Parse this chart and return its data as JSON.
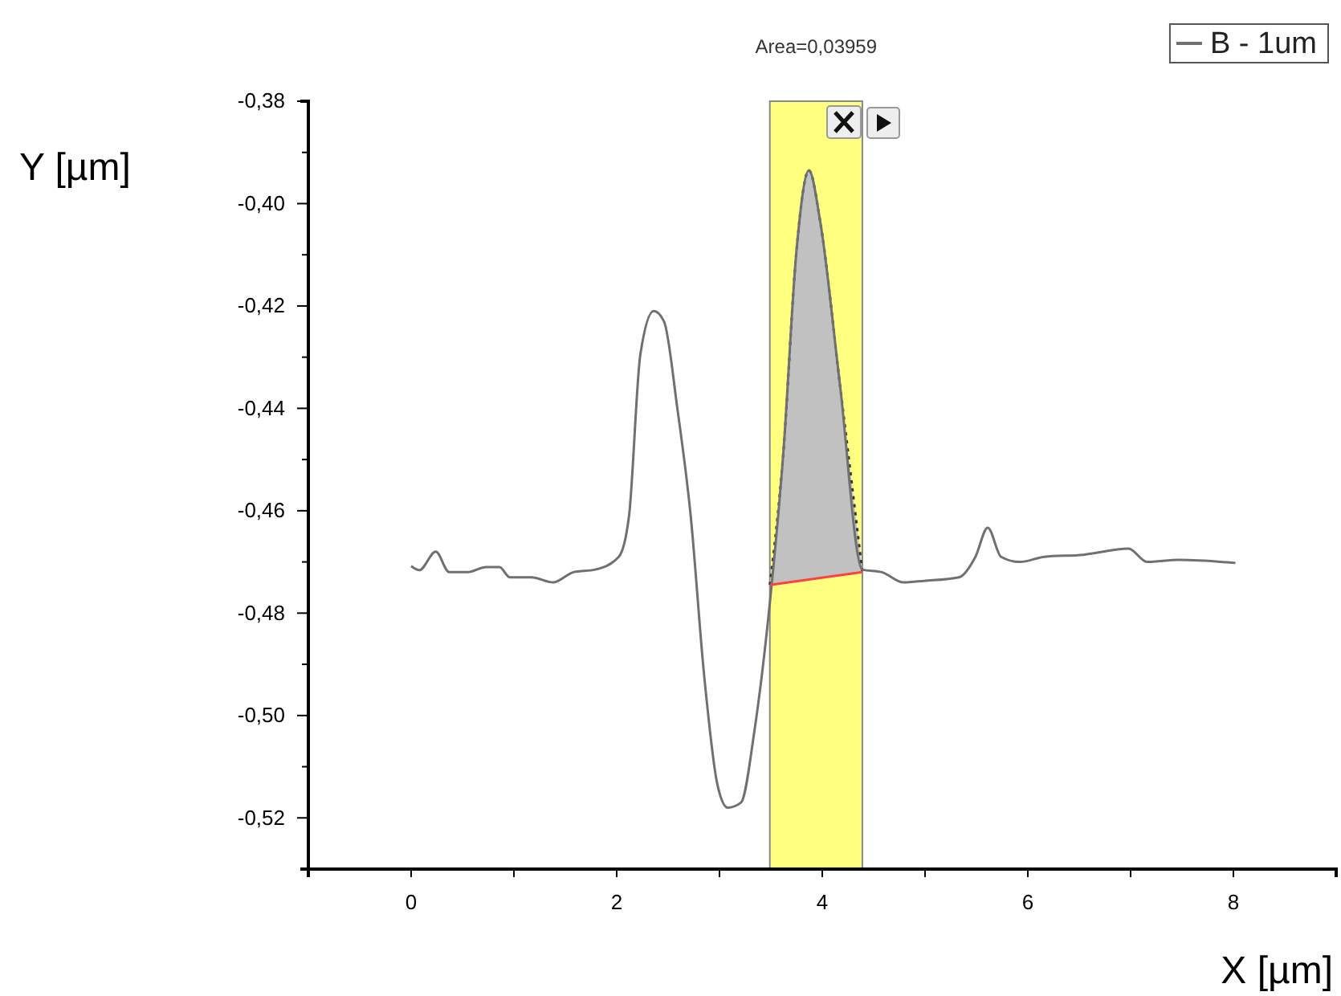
{
  "chart_data": {
    "type": "line",
    "xlabel": "X [µm]",
    "ylabel": "Y [µm]",
    "xlim": [
      -1,
      9
    ],
    "ylim": [
      -0.53,
      -0.38
    ],
    "xticks": [
      {
        "value": -1,
        "label": null
      },
      0,
      {
        "value": 1,
        "label": null
      },
      2,
      {
        "value": 3,
        "label": null
      },
      4,
      {
        "value": 5,
        "label": null
      },
      6,
      {
        "value": 7,
        "label": null
      },
      8
    ],
    "yticks": [
      {
        "value": -0.53,
        "label": null
      },
      {
        "value": -0.52,
        "label": "-0,52"
      },
      {
        "value": -0.51,
        "label": null
      },
      {
        "value": -0.5,
        "label": "-0,50"
      },
      {
        "value": -0.49,
        "label": null
      },
      {
        "value": -0.48,
        "label": "-0,48"
      },
      {
        "value": -0.47,
        "label": null
      },
      {
        "value": -0.46,
        "label": "-0,46"
      },
      {
        "value": -0.45,
        "label": null
      },
      {
        "value": -0.44,
        "label": "-0,44"
      },
      {
        "value": -0.43,
        "label": null
      },
      {
        "value": -0.42,
        "label": "-0,42"
      },
      {
        "value": -0.41,
        "label": null
      },
      {
        "value": -0.4,
        "label": "-0,40"
      },
      {
        "value": -0.39,
        "label": null
      },
      {
        "value": -0.38,
        "label": "-0,38"
      }
    ],
    "grid": false,
    "legend": "top right",
    "marker": "none",
    "bands": [
      {
        "axis": "x",
        "from": 3.49,
        "to": 4.39,
        "color": "#ffff80"
      }
    ],
    "annotations": [
      "Area=0,03959"
    ],
    "series": [
      {
        "name": "B - 1um",
        "color": "#707070",
        "x": [
          0,
          0.08,
          0.24,
          0.37,
          0.55,
          0.73,
          0.86,
          0.96,
          1.17,
          1.38,
          1.58,
          1.79,
          2.02,
          2.12,
          2.23,
          2.36,
          2.46,
          2.59,
          2.72,
          2.85,
          2.98,
          3.08,
          3.21,
          3.34,
          3.49,
          3.62,
          3.75,
          3.87,
          3.98,
          4.17,
          4.39,
          4.58,
          4.79,
          4.99,
          5.33,
          5.49,
          5.61,
          5.74,
          5.92,
          6.16,
          6.54,
          6.98,
          7.16,
          7.47,
          8.02
        ],
        "values": [
          -0.4708,
          -0.4716,
          -0.468,
          -0.472,
          -0.472,
          -0.471,
          -0.471,
          -0.473,
          -0.473,
          -0.474,
          -0.472,
          -0.4715,
          -0.469,
          -0.461,
          -0.4295,
          -0.421,
          -0.423,
          -0.44,
          -0.461,
          -0.492,
          -0.5135,
          -0.518,
          -0.517,
          -0.503,
          -0.478,
          -0.449,
          -0.409,
          -0.3935,
          -0.4035,
          -0.435,
          -0.4715,
          -0.472,
          -0.474,
          -0.4737,
          -0.473,
          -0.469,
          -0.4633,
          -0.469,
          -0.47,
          -0.469,
          -0.4686,
          -0.4674,
          -0.47,
          -0.4696,
          -0.4702
        ]
      },
      {
        "color": "#333333",
        "line_style": "dotted",
        "x": [
          3.49,
          3.62,
          3.75,
          3.87,
          3.98,
          4.17,
          4.39
        ],
        "values": [
          -0.4745,
          -0.449,
          -0.409,
          -0.3935,
          -0.4035,
          -0.435,
          -0.472
        ],
        "lower": [
          -0.4745,
          -0.4741,
          -0.4738,
          -0.4734,
          -0.4731,
          -0.4726,
          -0.472
        ],
        "upper": [
          -0.4745,
          -0.449,
          -0.409,
          -0.3935,
          -0.4035,
          -0.435,
          -0.472
        ]
      },
      {
        "color": "#ff4040",
        "x": [
          3.49,
          4.39
        ],
        "values": [
          -0.4745,
          -0.472
        ]
      }
    ]
  }
}
